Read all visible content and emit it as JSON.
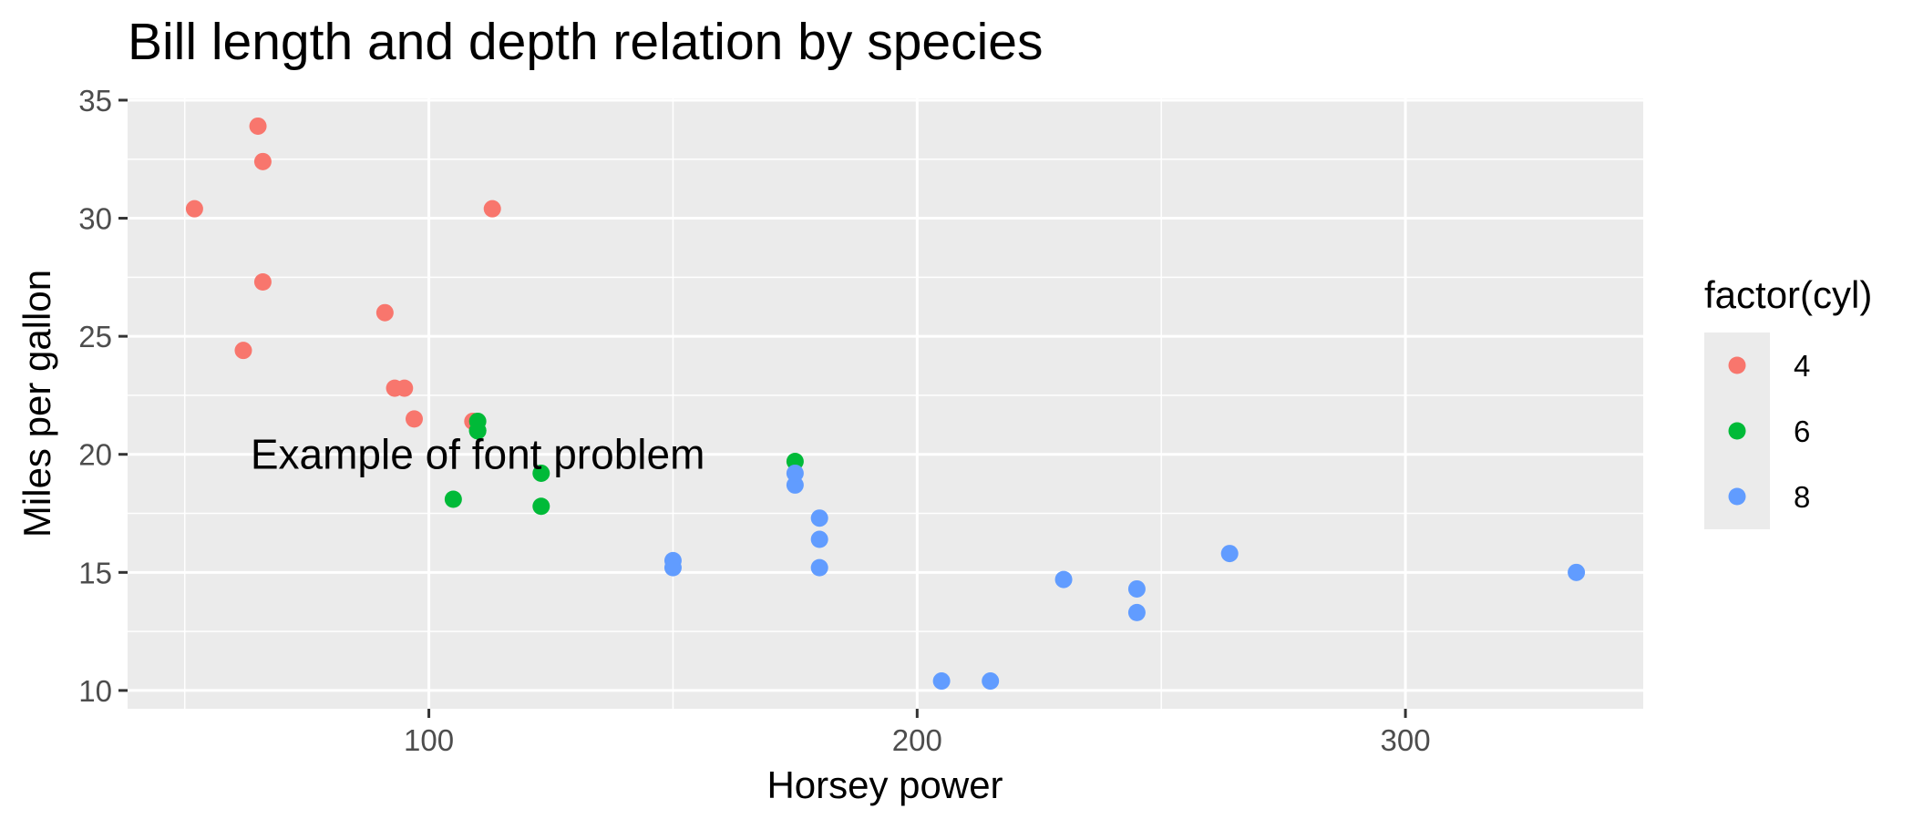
{
  "chart_data": {
    "type": "scatter",
    "title": "Bill length and depth relation by species",
    "xlabel": "Horsey power",
    "ylabel": "Miles per gallon",
    "xlim": [
      38.3,
      348.7
    ],
    "ylim": [
      9.225,
      35.075
    ],
    "x_ticks": [
      100,
      200,
      300
    ],
    "x_tick_labels": [
      "100",
      "200",
      "300"
    ],
    "x_minor_ticks": [
      50,
      150,
      250,
      350
    ],
    "y_ticks": [
      10,
      15,
      20,
      25,
      30,
      35
    ],
    "y_tick_labels": [
      "10",
      "15",
      "20",
      "25",
      "30",
      "35"
    ],
    "y_minor_ticks": [
      12.5,
      17.5,
      22.5,
      27.5,
      32.5
    ],
    "grid": true,
    "legend": {
      "title": "factor(cyl)",
      "position": "right",
      "entries": [
        {
          "label": "4",
          "color": "#F8766D"
        },
        {
          "label": "6",
          "color": "#00BA38"
        },
        {
          "label": "8",
          "color": "#619CFF"
        }
      ]
    },
    "annotations": [
      {
        "text": "Example of font problem",
        "x": 110,
        "y": 20,
        "anchor": "middle"
      }
    ],
    "series": [
      {
        "name": "4",
        "color": "#F8766D",
        "points": [
          [
            93,
            22.8
          ],
          [
            62,
            24.4
          ],
          [
            95,
            22.8
          ],
          [
            66,
            32.4
          ],
          [
            52,
            30.4
          ],
          [
            65,
            33.9
          ],
          [
            97,
            21.5
          ],
          [
            66,
            27.3
          ],
          [
            91,
            26.0
          ],
          [
            113,
            30.4
          ],
          [
            109,
            21.4
          ]
        ]
      },
      {
        "name": "6",
        "color": "#00BA38",
        "points": [
          [
            110,
            21.0
          ],
          [
            110,
            21.0
          ],
          [
            110,
            21.4
          ],
          [
            105,
            18.1
          ],
          [
            123,
            19.2
          ],
          [
            123,
            17.8
          ],
          [
            175,
            19.7
          ]
        ]
      },
      {
        "name": "8",
        "color": "#619CFF",
        "points": [
          [
            175,
            18.7
          ],
          [
            245,
            14.3
          ],
          [
            180,
            16.4
          ],
          [
            180,
            17.3
          ],
          [
            180,
            15.2
          ],
          [
            205,
            10.4
          ],
          [
            215,
            10.4
          ],
          [
            230,
            14.7
          ],
          [
            150,
            15.5
          ],
          [
            150,
            15.2
          ],
          [
            245,
            13.3
          ],
          [
            175,
            19.2
          ],
          [
            264,
            15.8
          ],
          [
            335,
            15.0
          ]
        ]
      }
    ]
  }
}
